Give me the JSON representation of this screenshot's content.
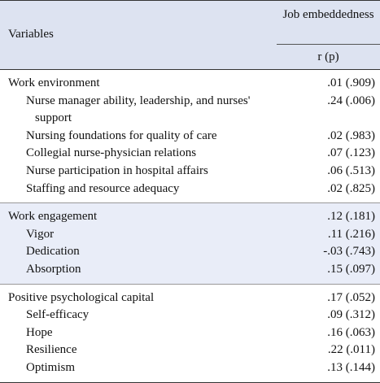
{
  "table": {
    "header": {
      "variables": "Variables",
      "column": "Job embeddedness",
      "subcolumn": "r (p)"
    },
    "groups": [
      {
        "label": "Work environment",
        "value": ".01 (.909)",
        "items": [
          {
            "label": "Nurse manager ability, leadership, and nurses' support",
            "value": ".24 (.006)"
          },
          {
            "label": "Nursing foundations for quality of care",
            "value": ".02 (.983)"
          },
          {
            "label": "Collegial nurse-physician relations",
            "value": ".07 (.123)"
          },
          {
            "label": "Nurse participation in hospital affairs",
            "value": ".06 (.513)"
          },
          {
            "label": "Staffing and resource adequacy",
            "value": ".02 (.825)"
          }
        ]
      },
      {
        "label": "Work engagement",
        "value": ".12 (.181)",
        "items": [
          {
            "label": "Vigor",
            "value": ".11 (.216)"
          },
          {
            "label": "Dedication",
            "value": "-.03 (.743)"
          },
          {
            "label": "Absorption",
            "value": ".15 (.097)"
          }
        ]
      },
      {
        "label": "Positive psychological capital",
        "value": ".17 (.052)",
        "items": [
          {
            "label": "Self-efficacy",
            "value": ".09 (.312)"
          },
          {
            "label": "Hope",
            "value": ".16 (.063)"
          },
          {
            "label": "Resilience",
            "value": ".22 (.011)"
          },
          {
            "label": "Optimism",
            "value": ".13 (.144)"
          }
        ]
      }
    ]
  }
}
